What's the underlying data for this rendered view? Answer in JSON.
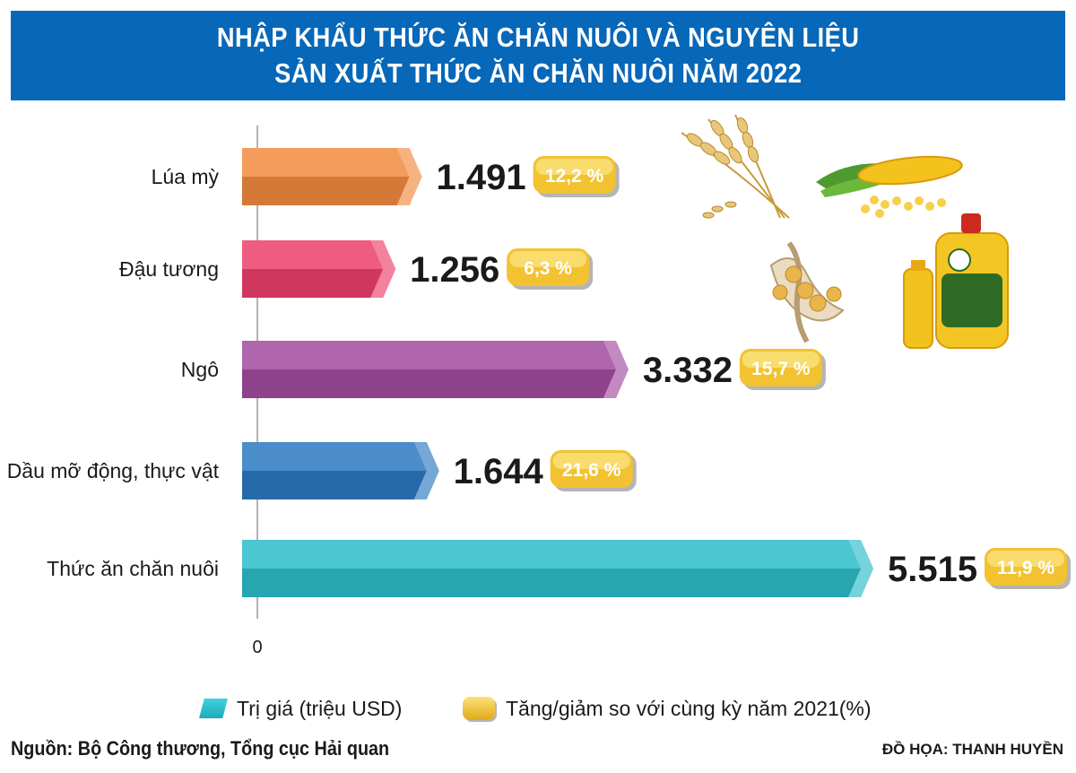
{
  "header": {
    "title_line1": "NHẬP KHẨU THỨC ĂN CHĂN NUÔI VÀ NGUYÊN LIỆU",
    "title_line2": "SẢN XUẤT THỨC ĂN CHĂN NUÔI NĂM 2022"
  },
  "chart_data": {
    "type": "bar",
    "orientation": "horizontal",
    "categories": [
      "Lúa mỳ",
      "Đậu tương",
      "Ngô",
      "Dầu mỡ động, thực vật",
      "Thức ăn chăn nuôi"
    ],
    "value_labels": [
      "1.491",
      "1.256",
      "3.332",
      "1.644",
      "5.515"
    ],
    "series": [
      {
        "name": "Trị giá (triệu USD)",
        "values": [
          1491,
          1256,
          3332,
          1644,
          5515
        ]
      },
      {
        "name": "Tăng/giảm so với cùng kỳ năm 2021(%)",
        "values": [
          12.2,
          6.3,
          15.7,
          21.6,
          11.9
        ],
        "labels": [
          "12,2 %",
          "6,3 %",
          "15,7 %",
          "21,6 %",
          "11,9 %"
        ]
      }
    ],
    "bar_colors": [
      "#f18a3f",
      "#ec3f6c",
      "#a14b9f",
      "#2b78c2",
      "#2cbcc9"
    ],
    "x_ticks": [
      "0"
    ],
    "xlim": [
      0,
      5515
    ],
    "legend_position": "bottom"
  },
  "colors": {
    "header_bg": "#0767b8",
    "badge_gold": "#f2c230",
    "legend_teal": "#2cbcc9"
  },
  "legend": {
    "items": [
      {
        "label": "Trị giá (triệu USD)",
        "icon": "teal-bar-swatch"
      },
      {
        "label": "Tăng/giảm so với cùng kỳ năm 2021(%)",
        "icon": "gold-badge-swatch"
      }
    ]
  },
  "footer": {
    "source": "Nguồn: Bộ Công thương, Tổng cục Hải quan",
    "credit": "ĐỒ HỌA: THANH HUYỀN"
  },
  "illustrations": [
    "wheat-icon",
    "corn-icon",
    "soybean-icon",
    "oil-bottle-icon"
  ]
}
